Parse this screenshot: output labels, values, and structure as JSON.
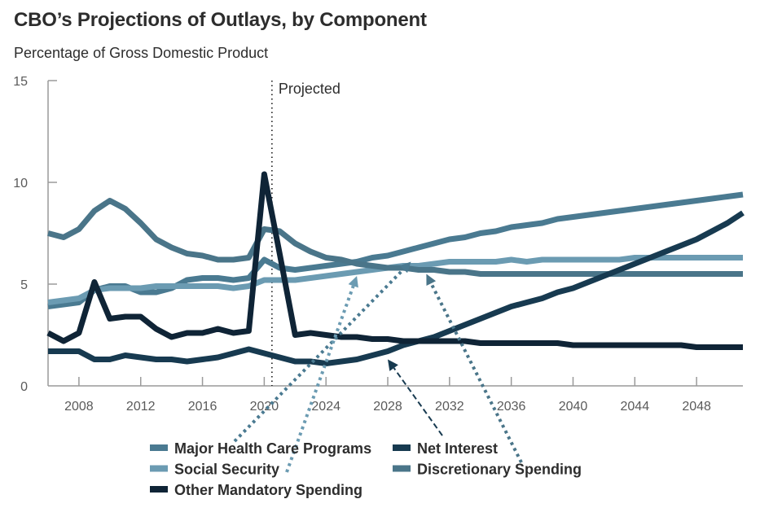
{
  "header": {
    "title": "CBO’s Projections of Outlays, by Component",
    "subtitle": "Percentage of Gross Domestic Product"
  },
  "chart_data": {
    "type": "line",
    "title": "CBO’s Projections of Outlays, by Component",
    "subtitle": "Percentage of Gross Domestic Product",
    "xlabel": "",
    "ylabel": "Percentage of Gross Domestic Product",
    "xlim": [
      2006,
      2051
    ],
    "ylim": [
      0,
      15
    ],
    "y_ticks": [
      0,
      5,
      10,
      15
    ],
    "x_ticks": [
      2008,
      2012,
      2016,
      2020,
      2024,
      2028,
      2032,
      2036,
      2040,
      2044,
      2048
    ],
    "grid": false,
    "annotation": {
      "label": "Projected",
      "x": 2020.5
    },
    "legend_position": "bottom",
    "x": [
      2006,
      2007,
      2008,
      2009,
      2010,
      2011,
      2012,
      2013,
      2014,
      2015,
      2016,
      2017,
      2018,
      2019,
      2020,
      2021,
      2022,
      2023,
      2024,
      2025,
      2026,
      2027,
      2028,
      2029,
      2030,
      2031,
      2032,
      2033,
      2034,
      2035,
      2036,
      2037,
      2038,
      2039,
      2040,
      2041,
      2042,
      2043,
      2044,
      2045,
      2046,
      2047,
      2048,
      2049,
      2050,
      2051
    ],
    "series": [
      {
        "name": "Major Health Care Programs",
        "color": "#4a7a91",
        "legend_col": 0,
        "values": [
          3.9,
          4.0,
          4.1,
          4.7,
          4.9,
          4.9,
          4.6,
          4.6,
          4.8,
          5.2,
          5.3,
          5.3,
          5.2,
          5.3,
          6.2,
          5.8,
          5.7,
          5.8,
          5.9,
          6.0,
          6.1,
          6.3,
          6.4,
          6.6,
          6.8,
          7.0,
          7.2,
          7.3,
          7.5,
          7.6,
          7.8,
          7.9,
          8.0,
          8.2,
          8.3,
          8.4,
          8.5,
          8.6,
          8.7,
          8.8,
          8.9,
          9.0,
          9.1,
          9.2,
          9.3,
          9.4
        ]
      },
      {
        "name": "Social Security",
        "color": "#6b9bb2",
        "legend_col": 0,
        "values": [
          4.1,
          4.2,
          4.3,
          4.7,
          4.8,
          4.8,
          4.8,
          4.9,
          4.9,
          4.9,
          4.9,
          4.9,
          4.8,
          4.9,
          5.2,
          5.2,
          5.2,
          5.3,
          5.4,
          5.5,
          5.6,
          5.7,
          5.8,
          5.9,
          5.9,
          6.0,
          6.1,
          6.1,
          6.1,
          6.1,
          6.2,
          6.1,
          6.2,
          6.2,
          6.2,
          6.2,
          6.2,
          6.2,
          6.3,
          6.3,
          6.3,
          6.3,
          6.3,
          6.3,
          6.3,
          6.3
        ]
      },
      {
        "name": "Other Mandatory Spending",
        "color": "#0f2436",
        "legend_col": 0,
        "values": [
          2.6,
          2.2,
          2.6,
          5.1,
          3.3,
          3.4,
          3.4,
          2.8,
          2.4,
          2.6,
          2.6,
          2.8,
          2.6,
          2.7,
          10.4,
          6.5,
          2.5,
          2.6,
          2.5,
          2.4,
          2.4,
          2.3,
          2.3,
          2.2,
          2.2,
          2.2,
          2.2,
          2.2,
          2.1,
          2.1,
          2.1,
          2.1,
          2.1,
          2.1,
          2.0,
          2.0,
          2.0,
          2.0,
          2.0,
          2.0,
          2.0,
          2.0,
          1.9,
          1.9,
          1.9,
          1.9
        ]
      },
      {
        "name": "Net Interest",
        "color": "#173a50",
        "legend_col": 1,
        "values": [
          1.7,
          1.7,
          1.7,
          1.3,
          1.3,
          1.5,
          1.4,
          1.3,
          1.3,
          1.2,
          1.3,
          1.4,
          1.6,
          1.8,
          1.6,
          1.4,
          1.2,
          1.2,
          1.1,
          1.2,
          1.3,
          1.5,
          1.7,
          2.0,
          2.2,
          2.4,
          2.7,
          3.0,
          3.3,
          3.6,
          3.9,
          4.1,
          4.3,
          4.6,
          4.8,
          5.1,
          5.4,
          5.7,
          6.0,
          6.3,
          6.6,
          6.9,
          7.2,
          7.6,
          8.0,
          8.5
        ]
      },
      {
        "name": "Discretionary Spending",
        "color": "#4a7589",
        "legend_col": 1,
        "values": [
          7.5,
          7.3,
          7.7,
          8.6,
          9.1,
          8.7,
          8.0,
          7.2,
          6.8,
          6.5,
          6.4,
          6.2,
          6.2,
          6.3,
          7.7,
          7.6,
          7.0,
          6.6,
          6.3,
          6.2,
          6.0,
          5.9,
          5.8,
          5.8,
          5.7,
          5.7,
          5.6,
          5.6,
          5.5,
          5.5,
          5.5,
          5.5,
          5.5,
          5.5,
          5.5,
          5.5,
          5.5,
          5.5,
          5.5,
          5.5,
          5.5,
          5.5,
          5.5,
          5.5,
          5.5,
          5.5
        ]
      }
    ],
    "callout_arrows": [
      {
        "series": "Major Health Care Programs",
        "style": "dotted",
        "target_x": 2029.5,
        "target_y": 6.1
      },
      {
        "series": "Social Security",
        "style": "dotted",
        "target_x": 2026,
        "target_y": 5.4
      },
      {
        "series": "Net Interest",
        "style": "dashed",
        "target_x": 2028,
        "target_y": 1.3
      },
      {
        "series": "Discretionary Spending",
        "style": "dotted",
        "target_x": 2030.5,
        "target_y": 5.5
      }
    ]
  }
}
